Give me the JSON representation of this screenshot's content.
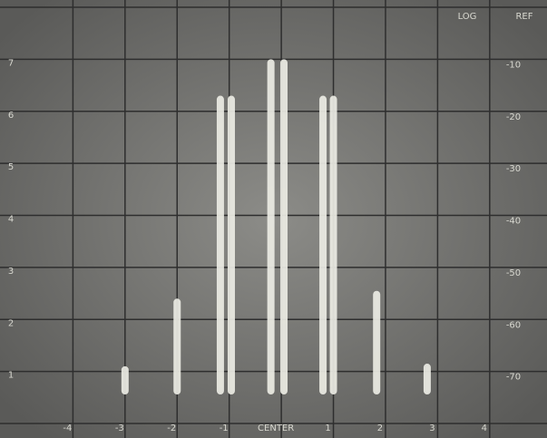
{
  "chart_data": {
    "type": "spectrum",
    "annotations": [
      "LOG",
      "REF"
    ],
    "x": [
      -3.0,
      -2.0,
      -1.17,
      -0.96,
      -0.2,
      0.05,
      0.8,
      1.0,
      1.83,
      2.8
    ],
    "values": [
      1.1,
      2.4,
      6.3,
      6.3,
      7.0,
      7.0,
      6.3,
      6.3,
      2.55,
      1.15
    ],
    "color": "#ecece4",
    "xlim": [
      -5.4,
      5.1
    ],
    "xticks": [
      -4,
      -3,
      -2,
      -1,
      {
        "value": 0,
        "label": "CENTER"
      },
      1,
      2,
      3,
      4
    ],
    "ylim": [
      0,
      8
    ],
    "yticks": [
      1,
      2,
      3,
      4,
      5,
      6,
      7
    ],
    "y2lim": [
      -80,
      0
    ],
    "y2ticks": [
      -70,
      -60,
      -50,
      -40,
      -30,
      -20,
      -10
    ],
    "grid": true
  }
}
